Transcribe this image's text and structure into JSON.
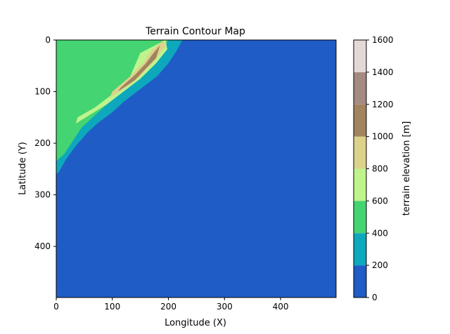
{
  "chart_data": {
    "type": "heatmap",
    "subtype": "filled-contour",
    "title": "Terrain Contour Map",
    "xlabel": "Longitude (X)",
    "ylabel": "Latitude (Y)",
    "xlim": [
      0,
      499
    ],
    "ylim": [
      499,
      0
    ],
    "xticks": [
      0,
      100,
      200,
      300,
      400
    ],
    "yticks": [
      0,
      100,
      200,
      300,
      400
    ],
    "colorbar": {
      "label": "terrain elevation [m]",
      "levels": [
        0,
        200,
        400,
        600,
        800,
        1000,
        1200,
        1400,
        1600
      ],
      "colors": [
        "#205cc6",
        "#0ea8bc",
        "#44d472",
        "#bff38c",
        "#ddd28c",
        "#a1845e",
        "#a58a82",
        "#e3d8d5"
      ]
    },
    "contour_regions": [
      {
        "level_min": 0,
        "level_max": 200,
        "description": "sea / lowland filling most of the domain"
      },
      {
        "level_min": 200,
        "level_max": 400,
        "outline": [
          [
            0,
            0
          ],
          [
            225,
            0
          ],
          [
            215,
            20
          ],
          [
            200,
            45
          ],
          [
            180,
            70
          ],
          [
            150,
            95
          ],
          [
            120,
            120
          ],
          [
            100,
            140
          ],
          [
            75,
            160
          ],
          [
            55,
            180
          ],
          [
            35,
            205
          ],
          [
            18,
            230
          ],
          [
            5,
            255
          ],
          [
            0,
            260
          ]
        ]
      },
      {
        "level_min": 400,
        "level_max": 600,
        "outline": [
          [
            0,
            0
          ],
          [
            200,
            0
          ],
          [
            185,
            25
          ],
          [
            165,
            50
          ],
          [
            140,
            75
          ],
          [
            115,
            100
          ],
          [
            90,
            125
          ],
          [
            65,
            150
          ],
          [
            45,
            170
          ],
          [
            30,
            195
          ],
          [
            15,
            220
          ],
          [
            0,
            235
          ]
        ]
      },
      {
        "level_min": 600,
        "level_max": 800,
        "outline": [
          [
            150,
            25
          ],
          [
            195,
            0
          ],
          [
            198,
            18
          ],
          [
            178,
            45
          ],
          [
            150,
            75
          ],
          [
            120,
            100
          ],
          [
            90,
            125
          ],
          [
            60,
            145
          ],
          [
            35,
            162
          ],
          [
            38,
            150
          ],
          [
            70,
            130
          ],
          [
            100,
            105
          ],
          [
            130,
            75
          ]
        ]
      },
      {
        "level_min": 800,
        "level_max": 1000,
        "outline": [
          [
            170,
            20
          ],
          [
            192,
            0
          ],
          [
            195,
            12
          ],
          [
            175,
            40
          ],
          [
            150,
            70
          ],
          [
            120,
            95
          ],
          [
            95,
            112
          ],
          [
            100,
            100
          ],
          [
            130,
            72
          ],
          [
            155,
            45
          ]
        ]
      },
      {
        "level_min": 1000,
        "level_max": 1200,
        "outline": [
          [
            170,
            30
          ],
          [
            185,
            10
          ],
          [
            178,
            35
          ],
          [
            160,
            55
          ],
          [
            140,
            78
          ],
          [
            110,
            100
          ],
          [
            115,
            92
          ],
          [
            140,
            68
          ],
          [
            160,
            45
          ]
        ]
      }
    ]
  }
}
